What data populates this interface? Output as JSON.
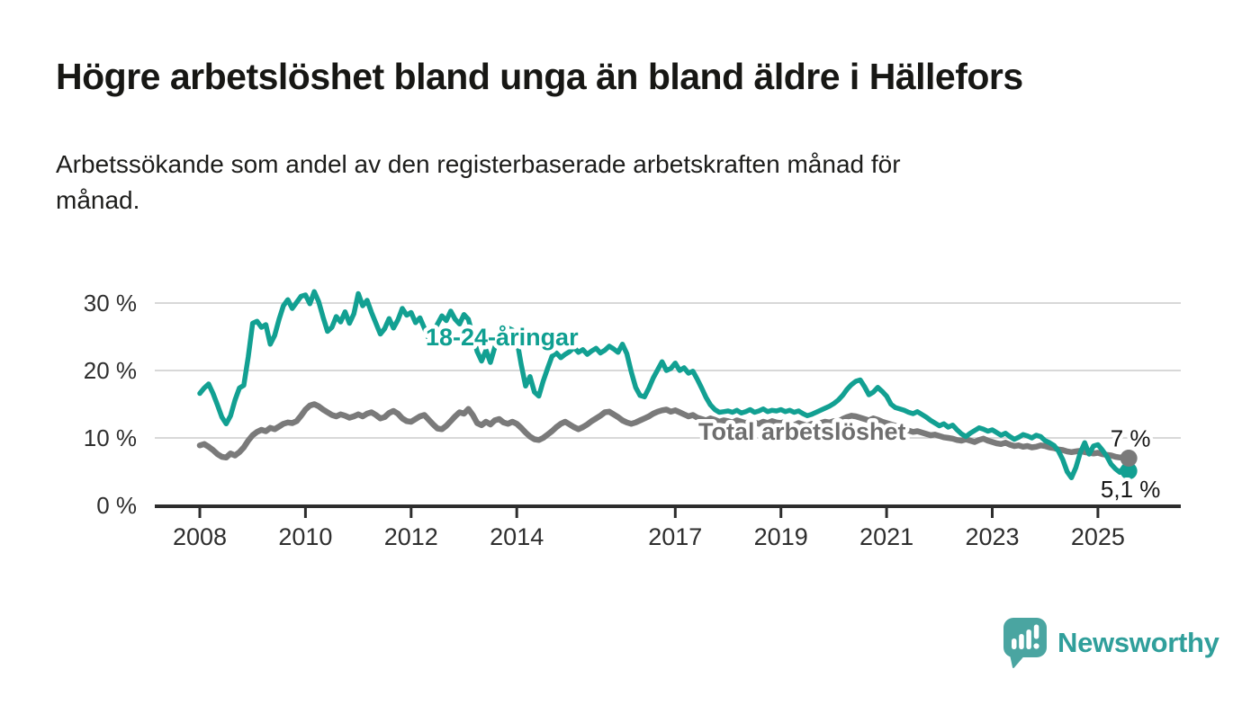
{
  "header": {
    "title": "Högre arbetslöshet bland unga än bland äldre i Hällefors",
    "subtitle": "Arbetssökande som andel av den registerbaserade arbetskraften månad för månad."
  },
  "chart_data": {
    "type": "line",
    "title": "Högre arbetslöshet bland unga än bland äldre i Hällefors",
    "subtitle": "Arbetssökande som andel av den registerbaserade arbetskraften månad för månad.",
    "x_unit": "month",
    "x_start": "2008-01",
    "x_end": "2025-08",
    "x_tick_years": [
      2008,
      2010,
      2012,
      2014,
      2017,
      2019,
      2021,
      2023,
      2025
    ],
    "x_tick_labels": [
      "2008",
      "2010",
      "2012",
      "2014",
      "2017",
      "2019",
      "2021",
      "2023",
      "2025"
    ],
    "y_ticks": [
      0,
      10,
      20,
      30
    ],
    "y_tick_labels": [
      "0 %",
      "10 %",
      "20 %",
      "30 %"
    ],
    "ylim": [
      0,
      33.5
    ],
    "grid": "horizontal",
    "legend_position": "inline-labels",
    "series": [
      {
        "name": "18-24-åringar",
        "color": "#12a092",
        "label_color": "#0f9f91",
        "end_label": "5,1 %",
        "end_value": 5.1,
        "values": [
          16.6,
          17.4,
          18.0,
          16.6,
          14.9,
          13.1,
          12.1,
          13.3,
          15.6,
          17.4,
          17.8,
          22.0,
          27.0,
          27.3,
          26.4,
          26.8,
          23.9,
          25.2,
          27.6,
          29.6,
          30.5,
          29.2,
          30.1,
          31.0,
          31.2,
          29.9,
          31.7,
          30.2,
          27.9,
          25.8,
          26.4,
          28.0,
          27.2,
          28.7,
          27.0,
          28.4,
          31.4,
          29.6,
          30.4,
          28.6,
          27.0,
          25.4,
          26.2,
          27.7,
          26.3,
          27.5,
          29.2,
          28.2,
          28.6,
          27.1,
          27.8,
          26.3,
          24.7,
          25.4,
          26.9,
          28.1,
          27.4,
          28.8,
          27.6,
          26.9,
          28.3,
          27.6,
          25.2,
          22.8,
          21.4,
          23.0,
          21.2,
          23.4,
          24.9,
          25.8,
          26.3,
          26.0,
          24.6,
          20.9,
          17.7,
          19.1,
          16.8,
          16.2,
          18.4,
          20.3,
          22.1,
          22.6,
          21.9,
          22.4,
          22.8,
          23.4,
          22.7,
          23.1,
          22.4,
          22.9,
          23.3,
          22.6,
          23.0,
          23.6,
          23.2,
          22.7,
          23.9,
          22.5,
          19.8,
          17.5,
          16.3,
          16.1,
          17.4,
          18.9,
          20.1,
          21.3,
          20.0,
          20.3,
          21.1,
          20.0,
          20.4,
          19.6,
          19.9,
          18.7,
          17.4,
          16.0,
          14.9,
          14.2,
          13.8,
          13.9,
          14.0,
          13.8,
          14.1,
          13.7,
          13.9,
          14.2,
          13.8,
          14.0,
          14.3,
          13.9,
          14.1,
          14.0,
          14.2,
          13.9,
          14.1,
          13.8,
          14.0,
          13.6,
          13.3,
          13.5,
          13.8,
          14.1,
          14.4,
          14.7,
          15.1,
          15.6,
          16.3,
          17.2,
          17.9,
          18.4,
          18.6,
          17.6,
          16.4,
          16.8,
          17.5,
          16.9,
          16.2,
          15.0,
          14.5,
          14.3,
          14.1,
          13.8,
          13.6,
          13.9,
          13.5,
          13.1,
          12.6,
          12.2,
          11.8,
          12.1,
          11.6,
          11.9,
          11.2,
          10.6,
          10.2,
          10.7,
          11.1,
          11.5,
          11.3,
          11.0,
          11.2,
          10.8,
          10.4,
          10.7,
          10.2,
          9.8,
          10.1,
          10.5,
          10.3,
          10.0,
          10.4,
          10.2,
          9.6,
          9.3,
          8.9,
          8.1,
          6.8,
          5.0,
          4.1,
          5.6,
          7.8,
          9.3,
          7.6,
          8.8,
          9.0,
          8.2,
          7.3,
          6.1,
          5.4,
          4.9,
          5.8,
          5.1
        ]
      },
      {
        "name": "Total arbetslöshet",
        "color": "#7a7a7a",
        "label_color": "#6e6e6e",
        "end_label": "7 %",
        "end_value": 7.0,
        "values": [
          8.9,
          9.1,
          8.7,
          8.2,
          7.6,
          7.2,
          7.1,
          7.7,
          7.4,
          7.9,
          8.6,
          9.6,
          10.4,
          10.9,
          11.2,
          11.0,
          11.5,
          11.3,
          11.7,
          12.1,
          12.3,
          12.2,
          12.5,
          13.3,
          14.2,
          14.8,
          15.0,
          14.7,
          14.2,
          13.8,
          13.4,
          13.2,
          13.5,
          13.3,
          13.0,
          13.2,
          13.5,
          13.2,
          13.6,
          13.8,
          13.4,
          12.9,
          13.1,
          13.7,
          14.0,
          13.6,
          12.9,
          12.5,
          12.4,
          12.8,
          13.2,
          13.4,
          12.7,
          12.0,
          11.4,
          11.3,
          11.8,
          12.5,
          13.2,
          13.8,
          13.6,
          14.3,
          13.4,
          12.2,
          11.9,
          12.4,
          12.0,
          12.6,
          12.8,
          12.3,
          12.1,
          12.4,
          12.1,
          11.5,
          10.8,
          10.2,
          9.8,
          9.7,
          10.0,
          10.5,
          11.0,
          11.6,
          12.1,
          12.4,
          12.0,
          11.6,
          11.3,
          11.6,
          12.0,
          12.5,
          12.9,
          13.3,
          13.8,
          13.9,
          13.5,
          13.1,
          12.6,
          12.3,
          12.1,
          12.3,
          12.6,
          12.9,
          13.2,
          13.6,
          13.9,
          14.1,
          14.2,
          13.9,
          14.1,
          13.8,
          13.5,
          13.2,
          13.4,
          13.0,
          12.8,
          12.6,
          12.9,
          12.7,
          12.4,
          12.6,
          12.5,
          12.3,
          12.6,
          12.4,
          12.2,
          12.5,
          12.3,
          12.1,
          12.4,
          12.2,
          12.5,
          12.3,
          12.2,
          12.4,
          12.1,
          11.9,
          12.2,
          12.0,
          11.8,
          12.1,
          11.9,
          12.2,
          12.4,
          12.3,
          12.5,
          12.4,
          12.8,
          13.1,
          13.3,
          13.2,
          13.0,
          12.8,
          12.6,
          12.9,
          12.7,
          12.4,
          12.2,
          12.0,
          11.8,
          11.5,
          11.3,
          11.1,
          10.9,
          11.0,
          10.8,
          10.6,
          10.4,
          10.5,
          10.3,
          10.1,
          10.0,
          9.9,
          9.7,
          9.6,
          9.8,
          9.6,
          9.4,
          9.7,
          9.9,
          9.6,
          9.4,
          9.2,
          9.1,
          9.3,
          9.0,
          8.8,
          8.9,
          8.7,
          8.8,
          8.6,
          8.7,
          8.9,
          8.8,
          8.6,
          8.5,
          8.3,
          8.2,
          8.0,
          7.9,
          8.0,
          8.1,
          7.9,
          7.8,
          7.7,
          7.8,
          7.6,
          7.5,
          7.4,
          7.2,
          7.1,
          7.2,
          7.0
        ]
      }
    ]
  },
  "footer": {
    "brand": "Newsworthy",
    "logo_icon": "speech-bubble-bar-chart-icon",
    "logo_color": "#4aa5a1",
    "brand_color": "#309f9b"
  }
}
